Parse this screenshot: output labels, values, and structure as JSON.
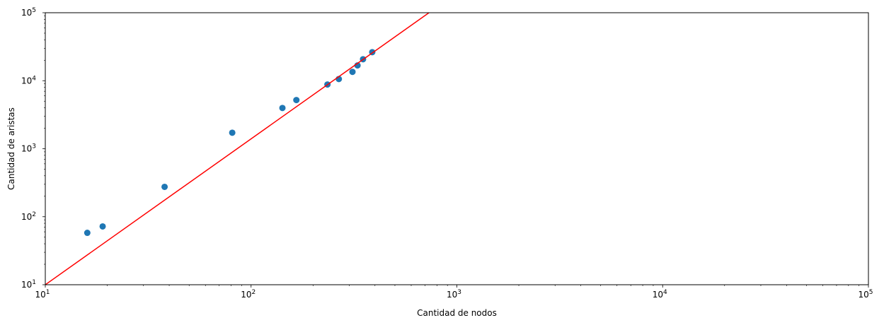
{
  "chart_data": {
    "type": "scatter",
    "x_scale": "log",
    "y_scale": "log",
    "xlim": [
      10,
      100000
    ],
    "ylim": [
      10,
      100000
    ],
    "xlabel": "Cantidad de nodos",
    "ylabel": "Cantidad de aristas",
    "grid": false,
    "x_ticks": [
      {
        "base": "10",
        "exp": "1",
        "value": 10
      },
      {
        "base": "10",
        "exp": "2",
        "value": 100
      },
      {
        "base": "10",
        "exp": "3",
        "value": 1000
      },
      {
        "base": "10",
        "exp": "4",
        "value": 10000
      },
      {
        "base": "10",
        "exp": "5",
        "value": 100000
      }
    ],
    "y_ticks": [
      {
        "base": "10",
        "exp": "1",
        "value": 10
      },
      {
        "base": "10",
        "exp": "2",
        "value": 100
      },
      {
        "base": "10",
        "exp": "3",
        "value": 1000
      },
      {
        "base": "10",
        "exp": "4",
        "value": 10000
      },
      {
        "base": "10",
        "exp": "5",
        "value": 100000
      }
    ],
    "series": [
      {
        "kind": "scatter",
        "color": "#1f77b4",
        "points": [
          {
            "x": 16,
            "y": 58
          },
          {
            "x": 19,
            "y": 72
          },
          {
            "x": 38,
            "y": 275
          },
          {
            "x": 81,
            "y": 1720
          },
          {
            "x": 142,
            "y": 3970
          },
          {
            "x": 166,
            "y": 5200
          },
          {
            "x": 235,
            "y": 8800
          },
          {
            "x": 267,
            "y": 10600
          },
          {
            "x": 311,
            "y": 13500
          },
          {
            "x": 329,
            "y": 16800
          },
          {
            "x": 350,
            "y": 20700
          },
          {
            "x": 388,
            "y": 26300
          }
        ]
      },
      {
        "kind": "line",
        "color": "#ff0000",
        "points": [
          {
            "x": 10,
            "y": 10
          },
          {
            "x": 732,
            "y": 100000
          }
        ]
      }
    ]
  }
}
